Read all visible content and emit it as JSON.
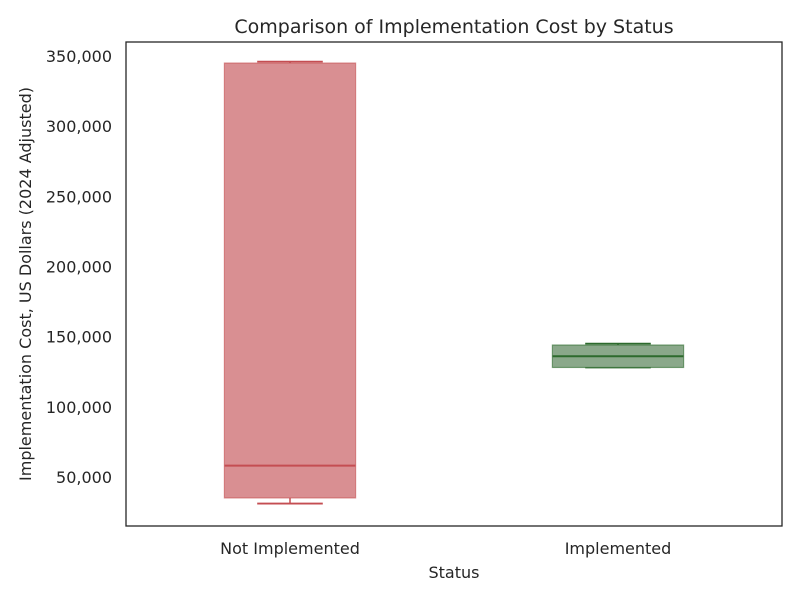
{
  "chart_data": {
    "type": "box",
    "title": "Comparison of Implementation Cost by Status",
    "xlabel": "Status",
    "ylabel": "Implementation Cost, US Dollars (2024 Adjusted)",
    "categories": [
      "Not Implemented",
      "Implemented"
    ],
    "ylim": [
      15000,
      360000
    ],
    "yticks": [
      50000,
      100000,
      150000,
      200000,
      250000,
      300000,
      350000
    ],
    "ytick_labels": [
      "50,000",
      "100,000",
      "150,000",
      "200,000",
      "250,000",
      "300,000",
      "350,000"
    ],
    "boxes": [
      {
        "category": "Not Implemented",
        "whisker_low": 31000,
        "q1": 35000,
        "median": 58000,
        "q3": 345000,
        "whisker_high": 346000,
        "fill": "#d98f92",
        "stroke": "#c44e52"
      },
      {
        "category": "Implemented",
        "whisker_low": 128000,
        "q1": 128000,
        "median": 136000,
        "q3": 144000,
        "whisker_high": 145000,
        "fill": "#8aa88a",
        "stroke": "#2d6a2d"
      }
    ],
    "grid": false,
    "legend": "none"
  }
}
